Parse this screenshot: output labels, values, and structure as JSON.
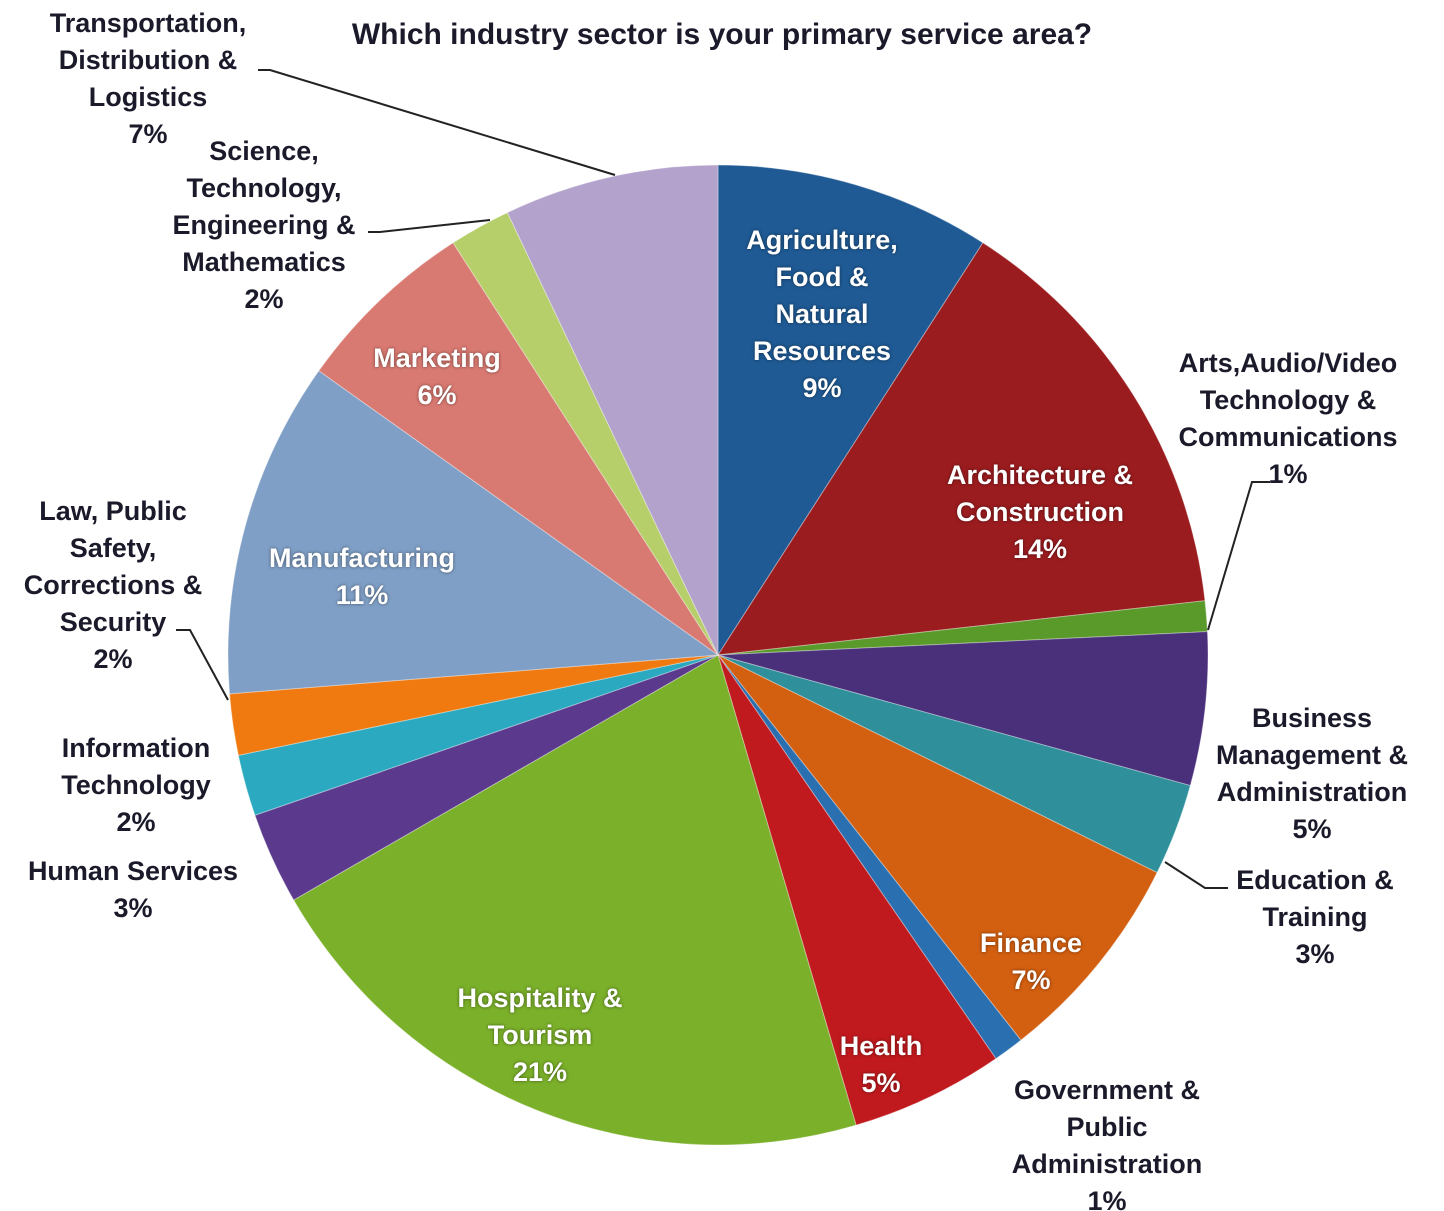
{
  "chart_data": {
    "type": "pie",
    "title": "Which industry sector is your primary service area?",
    "categories": [
      "Agriculture, Food & Natural Resources",
      "Architecture & Construction",
      "Arts,Audio/Video Technology & Communications",
      "Business Management & Administration",
      "Education & Training",
      "Finance",
      "Government & Public Administration",
      "Health",
      "Hospitality & Tourism",
      "Human Services",
      "Information Technology",
      "Law, Public Safety, Corrections & Security",
      "Manufacturing",
      "Marketing",
      "Science, Technology, Engineering & Mathematics",
      "Transportation, Distribution & Logistics"
    ],
    "values": [
      9,
      14,
      1,
      5,
      3,
      7,
      1,
      5,
      21,
      3,
      2,
      2,
      11,
      6,
      2,
      7
    ],
    "value_labels": [
      "9%",
      "14%",
      "1%",
      "5%",
      "3%",
      "7%",
      "1%",
      "5%",
      "21%",
      "3%",
      "2%",
      "2%",
      "11%",
      "6%",
      "2%",
      "7%"
    ],
    "colors": [
      "#1f5a94",
      "#9b1c1f",
      "#5a9a2a",
      "#4a2f7a",
      "#2f8f9a",
      "#d35f10",
      "#2a6fb0",
      "#c01a1e",
      "#7bb02a",
      "#5b3a8e",
      "#2aa9c0",
      "#f07a10",
      "#7f9fc6",
      "#d97a72",
      "#b6cf6a",
      "#b3a3cc"
    ]
  }
}
